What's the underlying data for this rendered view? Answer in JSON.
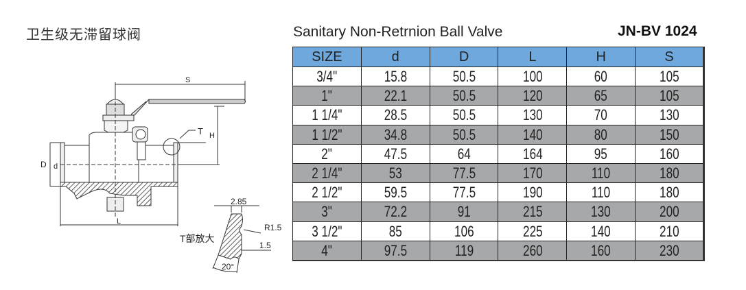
{
  "header": {
    "title_cn": "卫生级无滞留球阀",
    "title_en": "Sanitary Non-Retrnion Ball Valve",
    "model": "JN-BV 1024"
  },
  "table": {
    "columns": [
      "SIZE",
      "d",
      "D",
      "L",
      "H",
      "S"
    ],
    "rows": [
      [
        "3/4\"",
        "15.8",
        "50.5",
        "100",
        "60",
        "105"
      ],
      [
        "1\"",
        "22.1",
        "50.5",
        "120",
        "65",
        "105"
      ],
      [
        "1 1/4\"",
        "28.5",
        "50.5",
        "130",
        "70",
        "130"
      ],
      [
        "1 1/2\"",
        "34.8",
        "50.5",
        "140",
        "80",
        "150"
      ],
      [
        "2\"",
        "47.5",
        "64",
        "164",
        "95",
        "160"
      ],
      [
        "2 1/4\"",
        "53",
        "77.5",
        "170",
        "110",
        "180"
      ],
      [
        "2 1/2\"",
        "59.5",
        "77.5",
        "190",
        "110",
        "180"
      ],
      [
        "3\"",
        "72.2",
        "91",
        "215",
        "130",
        "200"
      ],
      [
        "3 1/2\"",
        "85",
        "106",
        "225",
        "140",
        "210"
      ],
      [
        "4\"",
        "97.5",
        "119",
        "260",
        "160",
        "230"
      ]
    ],
    "colors": {
      "header": "#6fa8dc",
      "alt_row": "#a7a8aa"
    }
  },
  "drawing": {
    "labels": {
      "S": "S",
      "H": "H",
      "T": "T",
      "D": "D",
      "d": "d",
      "L": "L"
    },
    "detail": {
      "caption": "T部放大",
      "width": "2.85",
      "radius": "R1.5",
      "depth": "1.5",
      "angle": "20°"
    }
  }
}
